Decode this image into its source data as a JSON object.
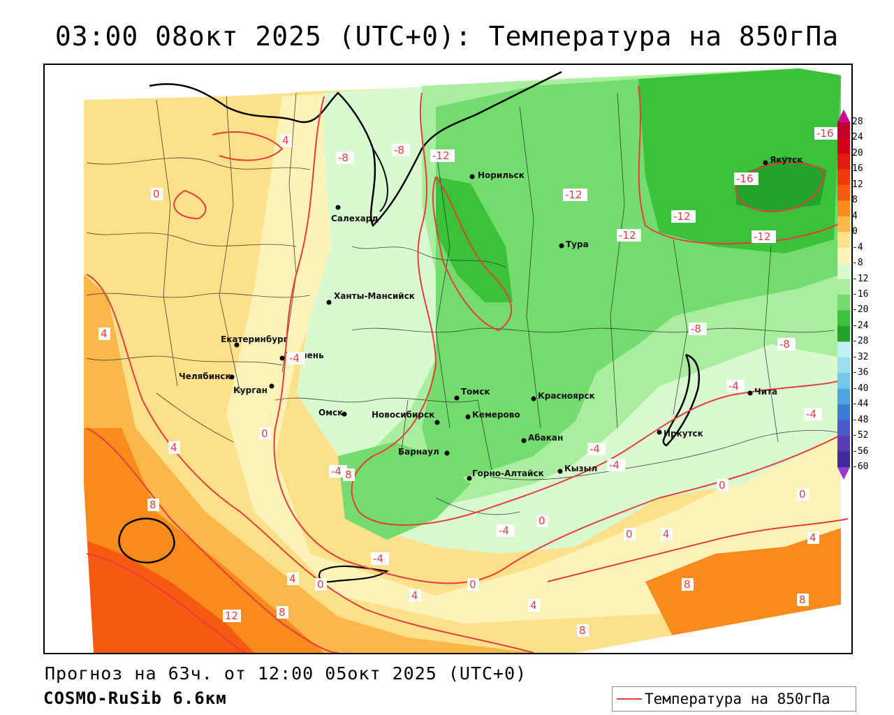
{
  "title": "03:00 08окт 2025 (UTC+0): Температура на 850гПа",
  "footer": {
    "forecast": "Прогноз на 63ч. от 12:00 05окт 2025 (UTC+0)",
    "model": "COSMO-RuSib 6.6км"
  },
  "legend": {
    "label": "Температура на 850гПа",
    "line_color": "#e83b3b"
  },
  "colorbar": {
    "ticks": [
      "28",
      "24",
      "20",
      "16",
      "12",
      "8",
      "4",
      "0",
      "-4",
      "-8",
      "-12",
      "-16",
      "-20",
      "-24",
      "-28",
      "-32",
      "-36",
      "-40",
      "-44",
      "-48",
      "-52",
      "-56",
      "-60"
    ],
    "colors": [
      "#c2002a",
      "#d4001a",
      "#e21c0c",
      "#ef3a0b",
      "#f55a10",
      "#f98a1c",
      "#fbb74a",
      "#fde08a",
      "#fdf3b8",
      "#d9fad0",
      "#a9ee9e",
      "#74dc6e",
      "#3bc23a",
      "#22a32a",
      "#bff0f5",
      "#98dff0",
      "#72c8ea",
      "#4ea6e0",
      "#3c7ed6",
      "#4b5ac8",
      "#5a3cb8",
      "#3f2aa0",
      "#2b1e88"
    ]
  },
  "cities": [
    {
      "name": "Норильск"
    },
    {
      "name": "Якутск"
    },
    {
      "name": "Салехард"
    },
    {
      "name": "Тура"
    },
    {
      "name": "Ханты-Мансийск"
    },
    {
      "name": "Екатеринбург"
    },
    {
      "name": "Тюмень"
    },
    {
      "name": "Челябинск"
    },
    {
      "name": "Курган"
    },
    {
      "name": "Омск"
    },
    {
      "name": "Томск"
    },
    {
      "name": "Красноярск"
    },
    {
      "name": "Новосибирск"
    },
    {
      "name": "Кемерово"
    },
    {
      "name": "Абакан"
    },
    {
      "name": "Барнаул"
    },
    {
      "name": "Горно-Алтайск"
    },
    {
      "name": "Кызыл"
    },
    {
      "name": "Иркутск"
    },
    {
      "name": "Чита"
    }
  ],
  "contour_labels": [
    "0",
    "4",
    "-8",
    "-8",
    "-12",
    "-12",
    "-16",
    "-16",
    "-12",
    "-12",
    "-12",
    "4",
    "-4",
    "0",
    "4",
    "-4",
    "8",
    "8",
    "-8",
    "-8",
    "-4",
    "-4",
    "-4",
    "-4",
    "0",
    "0",
    "0",
    "0",
    "4",
    "4",
    "-4",
    "0",
    "4",
    "0",
    "4",
    "8",
    "8",
    "12",
    "8",
    "4",
    "8",
    "-4"
  ]
}
